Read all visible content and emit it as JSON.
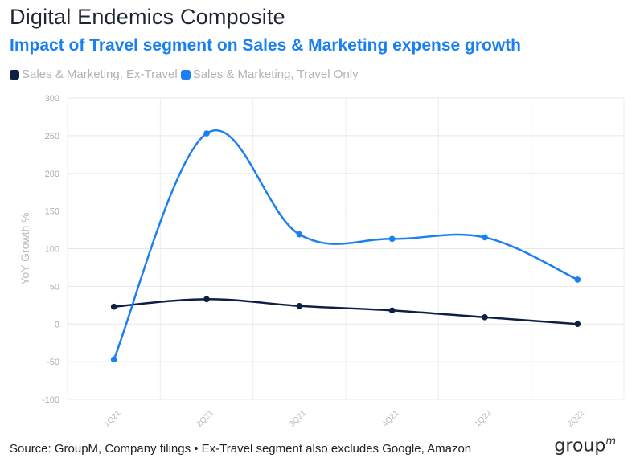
{
  "header": {
    "title": "Digital Endemics Composite",
    "subtitle": "Impact of Travel segment on Sales & Marketing expense growth"
  },
  "footer": {
    "source": "Source: GroupM, Company filings • Ex-Travel segment also excludes Google, Amazon",
    "brand": "group",
    "brand_sup": "m"
  },
  "chart_data": {
    "type": "line",
    "title": "Impact of Travel segment on Sales & Marketing expense growth",
    "ylabel": "YoY Growth %",
    "xlabel": "",
    "categories": [
      "1Q21",
      "2Q21",
      "3Q21",
      "4Q21",
      "1Q22",
      "2Q22"
    ],
    "ylim": [
      -100,
      300
    ],
    "yticks": [
      -100,
      -50,
      0,
      50,
      100,
      150,
      200,
      250,
      300
    ],
    "grid": true,
    "legend_position": "top-left",
    "series": [
      {
        "name": "Sales & Marketing, Ex-Travel",
        "color": "#0e1f45",
        "values": [
          23,
          33,
          24,
          18,
          9,
          0
        ]
      },
      {
        "name": "Sales & Marketing, Travel Only",
        "color": "#1a7ff0",
        "values": [
          -47,
          253,
          119,
          113,
          115,
          59
        ]
      }
    ]
  }
}
